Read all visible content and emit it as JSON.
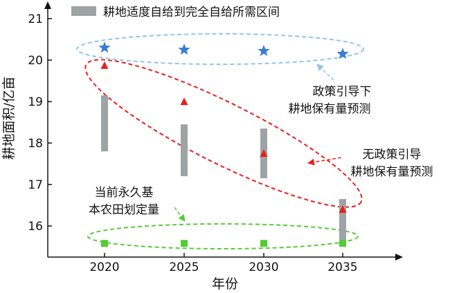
{
  "chart_data": {
    "type": "scatter",
    "title": "",
    "xlabel": "年份",
    "ylabel": "耕地面积/亿亩",
    "categories": [
      "2020",
      "2025",
      "2030",
      "2035"
    ],
    "yticks": [
      "16",
      "17",
      "18",
      "19",
      "20",
      "21"
    ],
    "ylim": [
      15.25,
      21.45
    ],
    "grid": false,
    "legend": {
      "position": "top",
      "label": "耕地适度自给到完全自给所需区间"
    },
    "range_series": {
      "name": "耕地适度自给到完全自给所需区间",
      "color": "#9ea3a6",
      "ranges": [
        [
          17.8,
          19.15
        ],
        [
          17.2,
          18.45
        ],
        [
          17.15,
          18.35
        ],
        [
          15.5,
          16.65
        ]
      ]
    },
    "series": [
      {
        "name": "政策引导下耕地保有量预测",
        "marker": "star",
        "color": "#3a7bd5",
        "values": [
          20.3,
          20.25,
          20.22,
          20.15
        ]
      },
      {
        "name": "无政策引导耕地保有量预测",
        "marker": "triangle",
        "color": "#e8201c",
        "values": [
          19.87,
          19.0,
          17.75,
          16.4
        ]
      },
      {
        "name": "当前永久基本农田划定量",
        "marker": "square",
        "color": "#55cc33",
        "values": [
          15.58,
          15.58,
          15.58,
          15.58
        ]
      }
    ],
    "annotations": {
      "policy": [
        "政策引导下",
        "耕地保有量预测"
      ],
      "nopolicy": [
        "无政策引导",
        "耕地保有量预测"
      ],
      "farmland": [
        "当前永久基",
        "本农田划定量"
      ]
    }
  }
}
